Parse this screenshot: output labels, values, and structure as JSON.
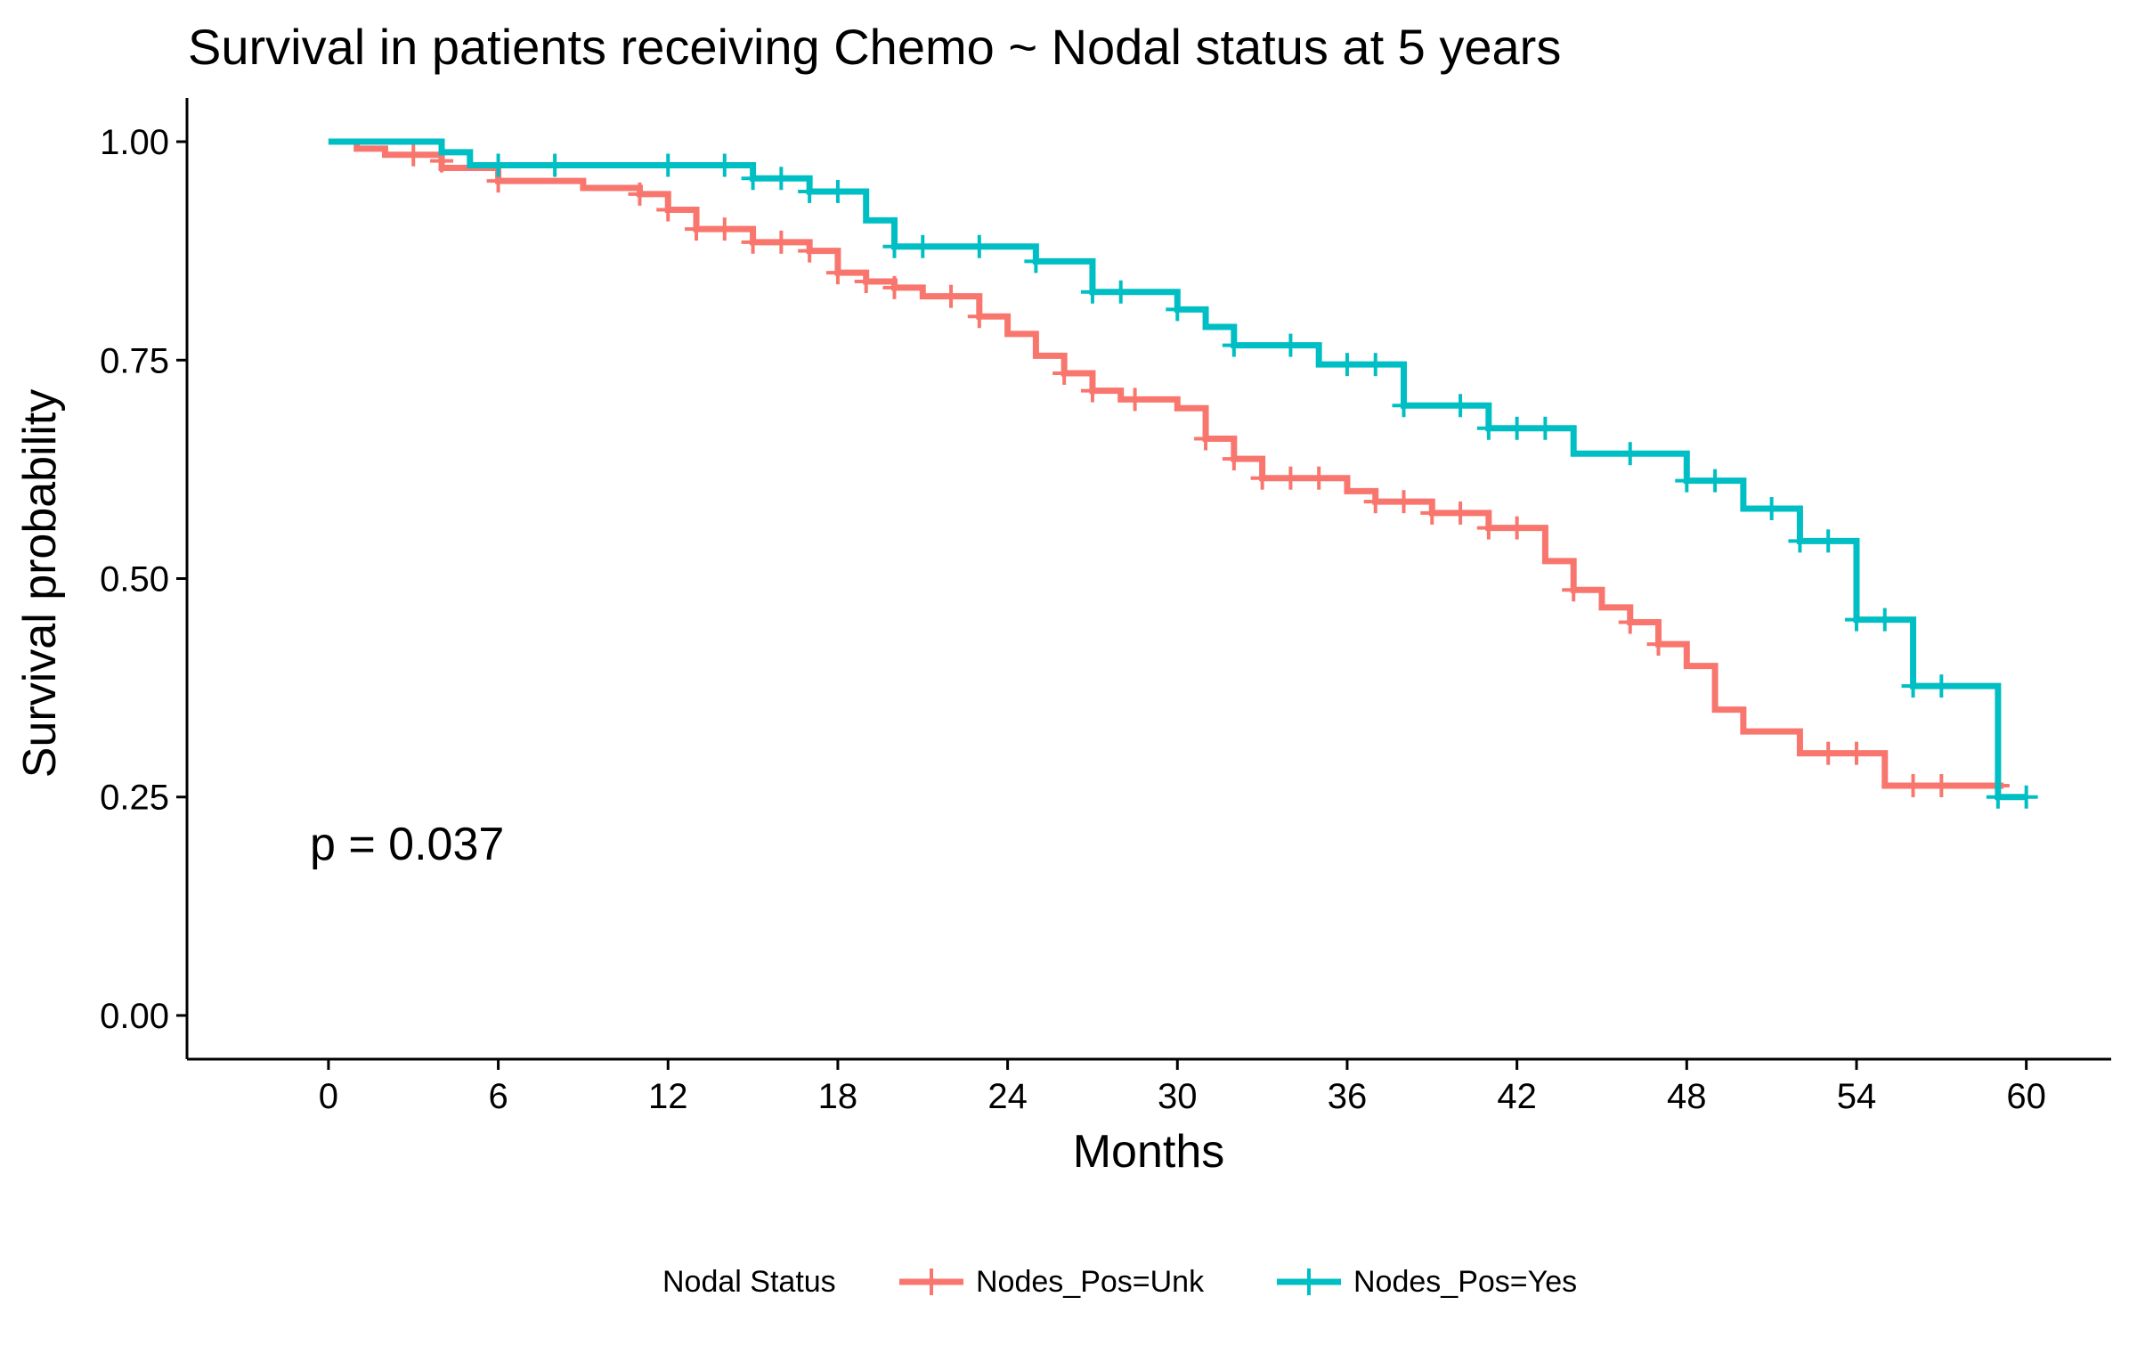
{
  "chart_data": {
    "type": "line",
    "step": true,
    "title": "Survival in patients receiving Chemo ~ Nodal status at 5 years",
    "xlabel": "Months",
    "ylabel": "Survival probability",
    "xlim": [
      -5,
      63
    ],
    "ylim": [
      -0.05,
      1.05
    ],
    "xticks": [
      0,
      6,
      12,
      18,
      24,
      30,
      36,
      42,
      48,
      54,
      60
    ],
    "xtick_labels": [
      "0",
      "6",
      "12",
      "18",
      "24",
      "30",
      "36",
      "42",
      "48",
      "54",
      "60"
    ],
    "yticks": [
      0,
      0.25,
      0.5,
      0.75,
      1
    ],
    "ytick_labels": [
      "0.00",
      "0.25",
      "0.50",
      "0.75",
      "1.00"
    ],
    "grid": false,
    "legend_position": "bottom",
    "legend_title": "Nodal Status",
    "annotation": "p = 0.037",
    "series": [
      {
        "name": "Nodes_Pos=Unk",
        "color": "#F8766D",
        "steps": [
          [
            0,
            1.0
          ],
          [
            1,
            0.992
          ],
          [
            2,
            0.985
          ],
          [
            4,
            0.97
          ],
          [
            6,
            0.955
          ],
          [
            9,
            0.947
          ],
          [
            11,
            0.94
          ],
          [
            12,
            0.922
          ],
          [
            13,
            0.9
          ],
          [
            15,
            0.885
          ],
          [
            17,
            0.875
          ],
          [
            18,
            0.85
          ],
          [
            19,
            0.84
          ],
          [
            20,
            0.833
          ],
          [
            21,
            0.823
          ],
          [
            23,
            0.8
          ],
          [
            24,
            0.78
          ],
          [
            25,
            0.755
          ],
          [
            26,
            0.735
          ],
          [
            27,
            0.715
          ],
          [
            28,
            0.705
          ],
          [
            30,
            0.695
          ],
          [
            31,
            0.66
          ],
          [
            32,
            0.637
          ],
          [
            33,
            0.615
          ],
          [
            36,
            0.6
          ],
          [
            37,
            0.588
          ],
          [
            39,
            0.575
          ],
          [
            41,
            0.558
          ],
          [
            43,
            0.52
          ],
          [
            44,
            0.487
          ],
          [
            45,
            0.467
          ],
          [
            46,
            0.45
          ],
          [
            47,
            0.425
          ],
          [
            48,
            0.4
          ],
          [
            49,
            0.35
          ],
          [
            50,
            0.325
          ],
          [
            52,
            0.3
          ],
          [
            55,
            0.263
          ],
          [
            59.2,
            0.263
          ]
        ],
        "censored": [
          [
            3,
            0.985
          ],
          [
            4,
            0.978
          ],
          [
            6,
            0.955
          ],
          [
            11,
            0.94
          ],
          [
            12,
            0.922
          ],
          [
            13,
            0.9
          ],
          [
            14,
            0.9
          ],
          [
            15,
            0.885
          ],
          [
            16,
            0.885
          ],
          [
            17,
            0.875
          ],
          [
            18,
            0.85
          ],
          [
            19,
            0.84
          ],
          [
            20,
            0.833
          ],
          [
            22,
            0.823
          ],
          [
            23,
            0.8
          ],
          [
            26,
            0.735
          ],
          [
            27,
            0.715
          ],
          [
            28.5,
            0.705
          ],
          [
            31,
            0.66
          ],
          [
            32,
            0.637
          ],
          [
            33,
            0.615
          ],
          [
            34,
            0.615
          ],
          [
            35,
            0.615
          ],
          [
            37,
            0.588
          ],
          [
            38,
            0.588
          ],
          [
            39,
            0.575
          ],
          [
            40,
            0.575
          ],
          [
            41,
            0.558
          ],
          [
            42,
            0.558
          ],
          [
            44,
            0.487
          ],
          [
            46,
            0.45
          ],
          [
            47,
            0.425
          ],
          [
            53,
            0.3
          ],
          [
            54,
            0.3
          ],
          [
            56,
            0.263
          ],
          [
            57,
            0.263
          ],
          [
            59,
            0.263
          ]
        ]
      },
      {
        "name": "Nodes_Pos=Yes",
        "color": "#00BFC4",
        "steps": [
          [
            0,
            1.0
          ],
          [
            4,
            0.988
          ],
          [
            5,
            0.973
          ],
          [
            15,
            0.958
          ],
          [
            17,
            0.943
          ],
          [
            19,
            0.91
          ],
          [
            20,
            0.88
          ],
          [
            25,
            0.863
          ],
          [
            27,
            0.828
          ],
          [
            30,
            0.808
          ],
          [
            31,
            0.788
          ],
          [
            32,
            0.767
          ],
          [
            35,
            0.745
          ],
          [
            38,
            0.698
          ],
          [
            41,
            0.672
          ],
          [
            44,
            0.643
          ],
          [
            48,
            0.612
          ],
          [
            50,
            0.58
          ],
          [
            52,
            0.543
          ],
          [
            54,
            0.453
          ],
          [
            56,
            0.377
          ],
          [
            59,
            0.25
          ],
          [
            60,
            0.25
          ]
        ],
        "censored": [
          [
            6,
            0.973
          ],
          [
            8,
            0.973
          ],
          [
            12,
            0.973
          ],
          [
            14,
            0.973
          ],
          [
            15,
            0.958
          ],
          [
            16,
            0.958
          ],
          [
            17,
            0.943
          ],
          [
            18,
            0.943
          ],
          [
            20,
            0.88
          ],
          [
            21,
            0.88
          ],
          [
            23,
            0.88
          ],
          [
            25,
            0.863
          ],
          [
            27,
            0.828
          ],
          [
            28,
            0.828
          ],
          [
            30,
            0.808
          ],
          [
            32,
            0.767
          ],
          [
            34,
            0.767
          ],
          [
            36,
            0.745
          ],
          [
            37,
            0.745
          ],
          [
            38,
            0.698
          ],
          [
            40,
            0.698
          ],
          [
            41,
            0.672
          ],
          [
            42,
            0.672
          ],
          [
            43,
            0.672
          ],
          [
            46,
            0.643
          ],
          [
            48,
            0.612
          ],
          [
            49,
            0.612
          ],
          [
            51,
            0.58
          ],
          [
            52,
            0.543
          ],
          [
            53,
            0.543
          ],
          [
            54,
            0.453
          ],
          [
            55,
            0.453
          ],
          [
            56,
            0.377
          ],
          [
            57,
            0.377
          ],
          [
            59,
            0.25
          ],
          [
            60,
            0.25
          ]
        ]
      }
    ]
  }
}
